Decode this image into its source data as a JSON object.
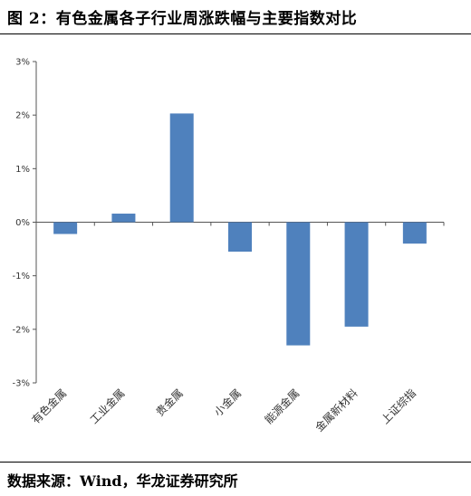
{
  "header": {
    "title": "图 2：有色金属各子行业周涨跌幅与主要指数对比"
  },
  "footer": {
    "source": "数据来源：Wind，华龙证券研究所"
  },
  "chart_data": {
    "type": "bar",
    "title": "",
    "xlabel": "",
    "ylabel": "",
    "categories": [
      "有色金属",
      "工业金属",
      "贵金属",
      "小金属",
      "能源金属",
      "金属新材料",
      "上证综指"
    ],
    "values": [
      -0.22,
      0.16,
      2.03,
      -0.55,
      -2.3,
      -1.95,
      -0.4
    ],
    "ylim": [
      -3,
      3
    ],
    "yticks": [
      3,
      2,
      1,
      0,
      -1,
      -2,
      -3
    ],
    "ytick_labels": [
      "3%",
      "2%",
      "1%",
      "0%",
      "-1%",
      "-2%",
      "-3%"
    ],
    "bar_color": "#4f81bd",
    "grid": false,
    "legend": "none"
  }
}
